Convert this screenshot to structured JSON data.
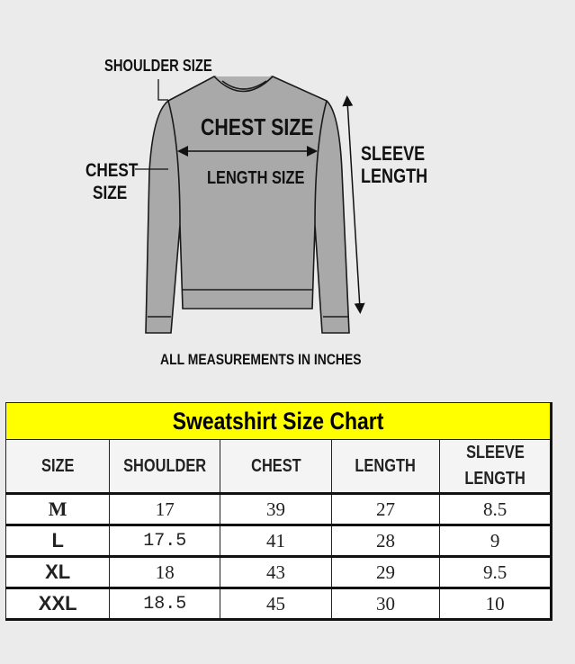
{
  "diagram": {
    "shoulder_label": "SHOULDER SIZE",
    "chest_label_line1": "CHEST SIZE",
    "side_chest_line1": "CHEST",
    "side_chest_line2": "SIZE",
    "length_label": "LENGTH SIZE",
    "sleeve_line1": "SLEEVE",
    "sleeve_line2": "LENGTH",
    "note": "ALL MEASUREMENTS IN INCHES",
    "garment_color": "#a9a9a9"
  },
  "table": {
    "title": "Sweatshirt Size Chart",
    "title_bg": "#ffff00",
    "headers": [
      "SIZE",
      "SHOULDER",
      "CHEST",
      "LENGTH",
      "SLEEVE LENGTH"
    ],
    "sleeve_header_line1": "SLEEVE",
    "sleeve_header_line2": "LENGTH",
    "rows": [
      [
        "M",
        "17",
        "39",
        "27",
        "8.5"
      ],
      [
        "L",
        "17.5",
        "41",
        "28",
        "9"
      ],
      [
        "XL",
        "18",
        "43",
        "29",
        "9.5"
      ],
      [
        "XXL",
        "18.5",
        "45",
        "30",
        "10"
      ]
    ]
  }
}
